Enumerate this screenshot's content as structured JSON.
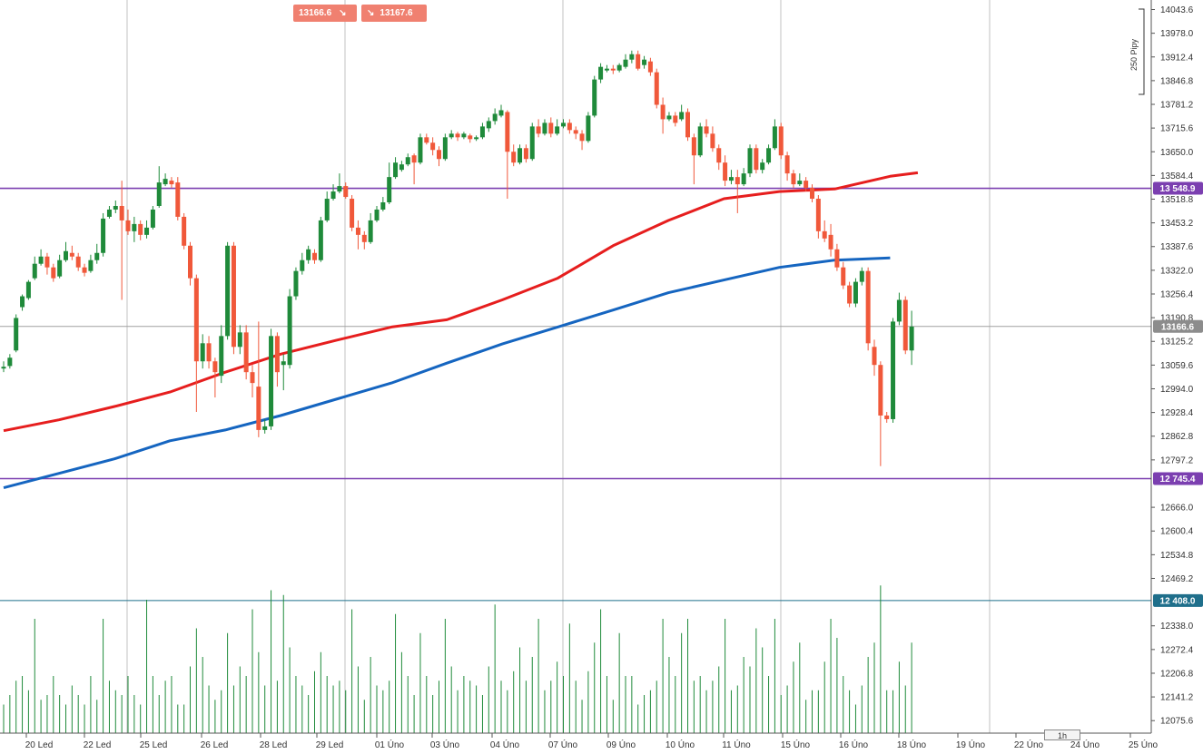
{
  "toolbar": {
    "sell_price": "13166.6",
    "buy_price": "13167.6",
    "sell_icon": "arrow-down-right-icon",
    "buy_icon": "arrow-down-right-icon"
  },
  "measure_label": "250 Pipy",
  "timeframe_label": "1h",
  "colors": {
    "bull": "#1f8a3a",
    "bear": "#f0583a",
    "ma_red": "#e61e1e",
    "ma_blue": "#1565c0",
    "level": "#7b3fb0",
    "volume": "#1f8a3a",
    "volume_line": "#1f6f8b",
    "price_badge": "#8c8c8c"
  },
  "chart_data": {
    "type": "candlestick",
    "price_axis": {
      "ticks": [
        "14043.6",
        "13978.0",
        "13912.4",
        "13846.8",
        "13781.2",
        "13715.6",
        "13650.0",
        "13584.4",
        "13518.8",
        "13453.2",
        "13387.6",
        "13322.0",
        "13256.4",
        "13190.8",
        "13125.2",
        "13059.6",
        "12994.0",
        "12928.4",
        "12862.8",
        "12797.2",
        "12666.0",
        "12600.4",
        "12534.8",
        "12469.2",
        "12338.0",
        "12272.4",
        "12206.8",
        "12141.2",
        "12075.6"
      ],
      "range": [
        12041,
        14070
      ]
    },
    "date_labels": [
      "20 Led",
      "22 Led",
      "25 Led",
      "26 Led",
      "28 Led",
      "29 Led",
      "01 Úno",
      "03 Úno",
      "04 Úno",
      "07 Úno",
      "09 Úno",
      "10 Úno",
      "11 Úno",
      "15 Úno",
      "16 Úno",
      "18 Úno",
      "19 Úno",
      "22 Úno",
      "24 Úno",
      "25 Úno"
    ],
    "levels": [
      {
        "value": 13548.9,
        "label": "13 548.9",
        "kind": "horizontal-line"
      },
      {
        "value": 12745.4,
        "label": "12 745.4",
        "kind": "horizontal-line"
      },
      {
        "value": 12408.0,
        "label": "12 408.0",
        "kind": "volume-level"
      }
    ],
    "current_price": {
      "value": 13166.6,
      "label": "13166.6"
    },
    "ma_red": [
      [
        0,
        12878
      ],
      [
        10,
        12908
      ],
      [
        20,
        12945
      ],
      [
        30,
        12985
      ],
      [
        40,
        13040
      ],
      [
        50,
        13090
      ],
      [
        60,
        13128
      ],
      [
        70,
        13165
      ],
      [
        80,
        13185
      ],
      [
        90,
        13240
      ],
      [
        100,
        13300
      ],
      [
        110,
        13390
      ],
      [
        120,
        13460
      ],
      [
        130,
        13520
      ],
      [
        140,
        13540
      ],
      [
        150,
        13547
      ],
      [
        160,
        13582
      ],
      [
        165,
        13592
      ]
    ],
    "ma_blue": [
      [
        0,
        12720
      ],
      [
        10,
        12760
      ],
      [
        20,
        12800
      ],
      [
        30,
        12850
      ],
      [
        40,
        12880
      ],
      [
        50,
        12920
      ],
      [
        60,
        12965
      ],
      [
        70,
        13010
      ],
      [
        80,
        13065
      ],
      [
        90,
        13118
      ],
      [
        100,
        13165
      ],
      [
        110,
        13212
      ],
      [
        120,
        13260
      ],
      [
        130,
        13295
      ],
      [
        140,
        13330
      ],
      [
        150,
        13350
      ],
      [
        160,
        13356
      ]
    ],
    "candles": [
      [
        13050,
        13055,
        13040,
        13070
      ],
      [
        13057,
        13080,
        13050,
        13090
      ],
      [
        13100,
        13190,
        13095,
        13200
      ],
      [
        13220,
        13250,
        13210,
        13255
      ],
      [
        13245,
        13290,
        13240,
        13295
      ],
      [
        13300,
        13340,
        13295,
        13360
      ],
      [
        13340,
        13360,
        13335,
        13380
      ],
      [
        13360,
        13330,
        13310,
        13370
      ],
      [
        13330,
        13300,
        13290,
        13340
      ],
      [
        13305,
        13350,
        13300,
        13365
      ],
      [
        13350,
        13375,
        13345,
        13400
      ],
      [
        13370,
        13360,
        13350,
        13390
      ],
      [
        13360,
        13330,
        13320,
        13370
      ],
      [
        13330,
        13315,
        13305,
        13340
      ],
      [
        13320,
        13350,
        13315,
        13365
      ],
      [
        13350,
        13370,
        13340,
        13395
      ],
      [
        13370,
        13465,
        13360,
        13480
      ],
      [
        13470,
        13490,
        13465,
        13500
      ],
      [
        13490,
        13500,
        13480,
        13515
      ],
      [
        13500,
        13460,
        13240,
        13570
      ],
      [
        13460,
        13430,
        13420,
        13490
      ],
      [
        13430,
        13450,
        13400,
        13470
      ],
      [
        13450,
        13420,
        13405,
        13460
      ],
      [
        13420,
        13440,
        13410,
        13460
      ],
      [
        13440,
        13490,
        13435,
        13500
      ],
      [
        13500,
        13565,
        13495,
        13610
      ],
      [
        13560,
        13575,
        13555,
        13590
      ],
      [
        13570,
        13560,
        13550,
        13580
      ],
      [
        13565,
        13470,
        13460,
        13580
      ],
      [
        13470,
        13390,
        13380,
        13480
      ],
      [
        13390,
        13300,
        13280,
        13400
      ],
      [
        13300,
        13070,
        12930,
        13310
      ],
      [
        13070,
        13120,
        13050,
        13145
      ],
      [
        13120,
        13070,
        13050,
        13140
      ],
      [
        13070,
        13040,
        12970,
        13080
      ],
      [
        13030,
        13140,
        13010,
        13170
      ],
      [
        13140,
        13390,
        13130,
        13400
      ],
      [
        13390,
        13110,
        13090,
        13400
      ],
      [
        13110,
        13150,
        13090,
        13170
      ],
      [
        13150,
        13040,
        13020,
        13170
      ],
      [
        13040,
        13010,
        12970,
        13060
      ],
      [
        13000,
        12880,
        12860,
        13180
      ],
      [
        12880,
        12890,
        12870,
        12910
      ],
      [
        12890,
        13140,
        12880,
        13160
      ],
      [
        13140,
        13040,
        13000,
        13150
      ],
      [
        13060,
        13070,
        12990,
        13090
      ],
      [
        13060,
        13250,
        13050,
        13270
      ],
      [
        13250,
        13320,
        13240,
        13330
      ],
      [
        13320,
        13350,
        13310,
        13370
      ],
      [
        13350,
        13380,
        13340,
        13390
      ],
      [
        13370,
        13350,
        13340,
        13380
      ],
      [
        13350,
        13460,
        13345,
        13470
      ],
      [
        13460,
        13520,
        13455,
        13540
      ],
      [
        13520,
        13540,
        13515,
        13560
      ],
      [
        13540,
        13555,
        13535,
        13590
      ],
      [
        13555,
        13525,
        13520,
        13565
      ],
      [
        13520,
        13440,
        13430,
        13530
      ],
      [
        13440,
        13420,
        13380,
        13460
      ],
      [
        13420,
        13400,
        13380,
        13430
      ],
      [
        13400,
        13460,
        13395,
        13480
      ],
      [
        13460,
        13490,
        13455,
        13500
      ],
      [
        13490,
        13510,
        13485,
        13525
      ],
      [
        13510,
        13580,
        13505,
        13620
      ],
      [
        13580,
        13620,
        13575,
        13635
      ],
      [
        13600,
        13615,
        13595,
        13625
      ],
      [
        13615,
        13635,
        13610,
        13645
      ],
      [
        13640,
        13620,
        13560,
        13645
      ],
      [
        13620,
        13690,
        13615,
        13700
      ],
      [
        13690,
        13675,
        13670,
        13700
      ],
      [
        13675,
        13655,
        13640,
        13690
      ],
      [
        13655,
        13630,
        13610,
        13665
      ],
      [
        13630,
        13690,
        13625,
        13700
      ],
      [
        13690,
        13700,
        13685,
        13710
      ],
      [
        13700,
        13690,
        13680,
        13705
      ],
      [
        13690,
        13700,
        13685,
        13705
      ],
      [
        13695,
        13685,
        13675,
        13700
      ],
      [
        13685,
        13690,
        13680,
        13695
      ],
      [
        13690,
        13720,
        13685,
        13730
      ],
      [
        13715,
        13735,
        13705,
        13745
      ],
      [
        13735,
        13755,
        13725,
        13770
      ],
      [
        13750,
        13765,
        13745,
        13780
      ],
      [
        13760,
        13650,
        13520,
        13765
      ],
      [
        13650,
        13620,
        13610,
        13670
      ],
      [
        13620,
        13660,
        13615,
        13670
      ],
      [
        13660,
        13630,
        13620,
        13670
      ],
      [
        13630,
        13720,
        13625,
        13730
      ],
      [
        13720,
        13700,
        13690,
        13740
      ],
      [
        13700,
        13730,
        13695,
        13740
      ],
      [
        13730,
        13700,
        13690,
        13745
      ],
      [
        13700,
        13720,
        13695,
        13740
      ],
      [
        13720,
        13730,
        13715,
        13740
      ],
      [
        13730,
        13710,
        13700,
        13740
      ],
      [
        13710,
        13700,
        13685,
        13720
      ],
      [
        13700,
        13680,
        13655,
        13710
      ],
      [
        13680,
        13750,
        13675,
        13760
      ],
      [
        13750,
        13850,
        13745,
        13860
      ],
      [
        13850,
        13885,
        13840,
        13895
      ],
      [
        13875,
        13880,
        13870,
        13890
      ],
      [
        13880,
        13875,
        13865,
        13890
      ],
      [
        13875,
        13890,
        13870,
        13895
      ],
      [
        13885,
        13905,
        13880,
        13920
      ],
      [
        13905,
        13920,
        13895,
        13930
      ],
      [
        13920,
        13880,
        13875,
        13930
      ],
      [
        13890,
        13905,
        13880,
        13915
      ],
      [
        13900,
        13870,
        13860,
        13910
      ],
      [
        13870,
        13780,
        13770,
        13880
      ],
      [
        13780,
        13740,
        13700,
        13800
      ],
      [
        13740,
        13750,
        13735,
        13760
      ],
      [
        13750,
        13730,
        13720,
        13760
      ],
      [
        13740,
        13760,
        13735,
        13780
      ],
      [
        13760,
        13690,
        13680,
        13770
      ],
      [
        13690,
        13640,
        13560,
        13700
      ],
      [
        13640,
        13720,
        13635,
        13730
      ],
      [
        13720,
        13700,
        13690,
        13740
      ],
      [
        13700,
        13660,
        13650,
        13720
      ],
      [
        13660,
        13620,
        13600,
        13670
      ],
      [
        13620,
        13570,
        13555,
        13640
      ],
      [
        13570,
        13580,
        13560,
        13600
      ],
      [
        13580,
        13560,
        13480,
        13600
      ],
      [
        13560,
        13590,
        13555,
        13605
      ],
      [
        13590,
        13660,
        13580,
        13670
      ],
      [
        13660,
        13600,
        13590,
        13670
      ],
      [
        13600,
        13620,
        13590,
        13630
      ],
      [
        13620,
        13660,
        13615,
        13670
      ],
      [
        13660,
        13720,
        13655,
        13740
      ],
      [
        13720,
        13640,
        13630,
        13730
      ],
      [
        13640,
        13590,
        13570,
        13650
      ],
      [
        13590,
        13560,
        13550,
        13600
      ],
      [
        13560,
        13570,
        13555,
        13590
      ],
      [
        13570,
        13550,
        13540,
        13580
      ],
      [
        13550,
        13520,
        13510,
        13560
      ],
      [
        13520,
        13430,
        13410,
        13530
      ],
      [
        13430,
        13410,
        13400,
        13460
      ],
      [
        13420,
        13380,
        13360,
        13450
      ],
      [
        13380,
        13330,
        13320,
        13395
      ],
      [
        13330,
        13280,
        13270,
        13345
      ],
      [
        13280,
        13230,
        13220,
        13290
      ],
      [
        13230,
        13290,
        13220,
        13300
      ],
      [
        13290,
        13320,
        13280,
        13330
      ],
      [
        13320,
        13120,
        13100,
        13330
      ],
      [
        13110,
        13060,
        13030,
        13130
      ],
      [
        13060,
        12920,
        12780,
        13070
      ],
      [
        12920,
        12910,
        12900,
        12930
      ],
      [
        12910,
        13180,
        12900,
        13190
      ],
      [
        13180,
        13240,
        13170,
        13260
      ],
      [
        13240,
        13100,
        13090,
        13250
      ],
      [
        13100,
        13166,
        13060,
        13210
      ]
    ],
    "volume": [
      30,
      40,
      55,
      60,
      45,
      120,
      35,
      40,
      60,
      40,
      30,
      50,
      40,
      30,
      60,
      35,
      120,
      55,
      45,
      40,
      60,
      40,
      30,
      140,
      60,
      40,
      55,
      60,
      30,
      30,
      70,
      110,
      80,
      50,
      35,
      45,
      105,
      50,
      70,
      60,
      130,
      85,
      50,
      150,
      55,
      145,
      90,
      60,
      50,
      40,
      65,
      85,
      60,
      50,
      55,
      45,
      130,
      70,
      35,
      80,
      50,
      45,
      55,
      125,
      85,
      60,
      40,
      105,
      60,
      40,
      55,
      120,
      70,
      45,
      60,
      55,
      50,
      40,
      70,
      135,
      55,
      45,
      65,
      90,
      55,
      80,
      120,
      45,
      55,
      75,
      60,
      115,
      55,
      35,
      65,
      95,
      130,
      60,
      35,
      105,
      60,
      60,
      30,
      40,
      45,
      55,
      120,
      80,
      60,
      105,
      120,
      55,
      60,
      45,
      55,
      70,
      120,
      45,
      50,
      80,
      70,
      110,
      90,
      60,
      120,
      40,
      50,
      75,
      95,
      35,
      45,
      45,
      75,
      120,
      100,
      60,
      45,
      30,
      50,
      80,
      95,
      155,
      45,
      45,
      75,
      50,
      95
    ]
  }
}
